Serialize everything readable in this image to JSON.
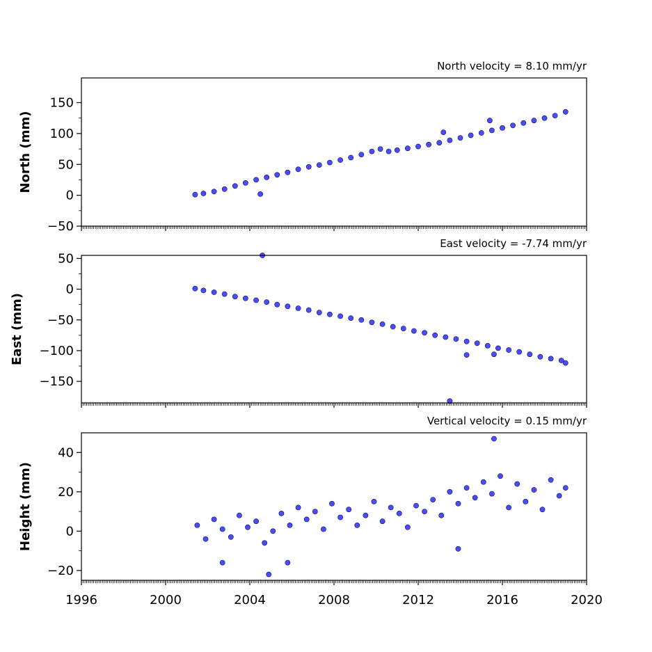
{
  "chart_data": [
    {
      "type": "scatter",
      "title": "North velocity = 8.10 mm/yr",
      "xlabel": "",
      "ylabel": "North (mm)",
      "xlim": [
        1996,
        2020
      ],
      "ylim": [
        -50,
        190
      ],
      "x_ticks": [],
      "y_ticks": [
        150,
        100,
        50,
        0,
        -50
      ],
      "y_tick_labels": [
        "150",
        "100",
        "50",
        "0",
        "−50"
      ],
      "grid": false,
      "marker_color": "#4b4bff",
      "series": [
        {
          "x": [
            2001.4,
            2001.8,
            2002.3,
            2002.8,
            2003.3,
            2003.8,
            2004.3,
            2004.8,
            2005.3,
            2005.8,
            2006.3,
            2006.8,
            2007.3,
            2007.8,
            2008.3,
            2008.8,
            2009.3,
            2009.8,
            2010.2,
            2010.6,
            2011.0,
            2011.5,
            2012.0,
            2012.5,
            2013.0,
            2013.5,
            2014.0,
            2014.5,
            2015.0,
            2015.5,
            2016.0,
            2016.5,
            2017.0,
            2017.5,
            2018.0,
            2018.5,
            2019.0,
            2004.5,
            2013.2,
            2015.4
          ],
          "y": [
            1,
            3,
            6,
            10,
            15,
            20,
            25,
            29,
            33,
            37,
            42,
            46,
            49,
            53,
            57,
            61,
            66,
            71,
            75,
            71,
            73,
            76,
            79,
            82,
            85,
            89,
            93,
            97,
            101,
            105,
            109,
            113,
            117,
            121,
            125,
            129,
            135,
            2,
            102,
            121
          ]
        }
      ]
    },
    {
      "type": "scatter",
      "title": "East velocity = -7.74 mm/yr",
      "xlabel": "",
      "ylabel": "East (mm)",
      "xlim": [
        1996,
        2020
      ],
      "ylim": [
        -185,
        55
      ],
      "x_ticks": [],
      "y_ticks": [
        50,
        0,
        -50,
        -100,
        -150
      ],
      "y_tick_labels": [
        "50",
        "0",
        "−50",
        "−100",
        "−150"
      ],
      "grid": false,
      "marker_color": "#4b4bff",
      "series": [
        {
          "x": [
            2001.4,
            2001.8,
            2002.3,
            2002.8,
            2003.3,
            2003.8,
            2004.3,
            2004.8,
            2005.3,
            2005.8,
            2006.3,
            2006.8,
            2007.3,
            2007.8,
            2008.3,
            2008.8,
            2009.3,
            2009.8,
            2010.3,
            2010.8,
            2011.3,
            2011.8,
            2012.3,
            2012.8,
            2013.3,
            2013.8,
            2014.3,
            2014.8,
            2015.3,
            2015.8,
            2016.3,
            2016.8,
            2017.3,
            2017.8,
            2018.3,
            2018.8,
            2019.0,
            2004.6,
            2013.5,
            2014.3,
            2015.6
          ],
          "y": [
            1,
            -2,
            -5,
            -8,
            -12,
            -15,
            -18,
            -21,
            -25,
            -28,
            -31,
            -34,
            -38,
            -41,
            -44,
            -47,
            -50,
            -54,
            -57,
            -61,
            -64,
            -68,
            -71,
            -75,
            -78,
            -81,
            -85,
            -88,
            -92,
            -96,
            -99,
            -102,
            -106,
            -110,
            -113,
            -116,
            -120,
            55,
            -182,
            -107,
            -106
          ]
        }
      ]
    },
    {
      "type": "scatter",
      "title": "Vertical velocity = 0.15 mm/yr",
      "xlabel": "",
      "ylabel": "Height (mm)",
      "xlim": [
        1996,
        2020
      ],
      "ylim": [
        -25,
        50
      ],
      "x_ticks": [
        1996,
        2000,
        2004,
        2008,
        2012,
        2016,
        2020
      ],
      "x_tick_labels": [
        "1996",
        "2000",
        "2004",
        "2008",
        "2012",
        "2016",
        "2020"
      ],
      "y_ticks": [
        40,
        20,
        0,
        -20
      ],
      "y_tick_labels": [
        "40",
        "20",
        "0",
        "−20"
      ],
      "grid": false,
      "marker_color": "#4b4bff",
      "series": [
        {
          "x": [
            2001.5,
            2001.9,
            2002.3,
            2002.7,
            2003.1,
            2003.5,
            2003.9,
            2004.3,
            2004.7,
            2005.1,
            2005.5,
            2005.9,
            2006.3,
            2006.7,
            2007.1,
            2007.5,
            2007.9,
            2008.3,
            2008.7,
            2009.1,
            2009.5,
            2009.9,
            2010.3,
            2010.7,
            2011.1,
            2011.5,
            2011.9,
            2012.3,
            2012.7,
            2013.1,
            2013.5,
            2013.9,
            2014.3,
            2014.7,
            2015.1,
            2015.5,
            2015.9,
            2016.3,
            2016.7,
            2017.1,
            2017.5,
            2017.9,
            2018.3,
            2018.7,
            2019.0,
            2004.9,
            2015.6,
            2002.7,
            2005.8,
            2013.9
          ],
          "y": [
            3,
            -4,
            6,
            1,
            -3,
            8,
            2,
            5,
            -6,
            0,
            9,
            3,
            12,
            6,
            10,
            1,
            14,
            7,
            11,
            3,
            8,
            15,
            5,
            12,
            9,
            2,
            13,
            10,
            16,
            8,
            20,
            14,
            22,
            17,
            25,
            19,
            28,
            12,
            24,
            15,
            21,
            11,
            26,
            18,
            22,
            -22,
            47,
            -16,
            -16,
            -9
          ]
        }
      ]
    }
  ]
}
